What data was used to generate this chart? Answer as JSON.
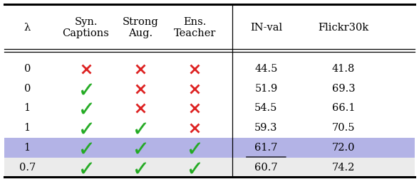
{
  "col_headers": [
    "λ",
    "Syn.\nCaptions",
    "Strong\nAug.",
    "Ens.\nTeacher",
    "IN-val",
    "Flickr30k"
  ],
  "rows": [
    {
      "lambda": "0",
      "syn": false,
      "strong": false,
      "ens": false,
      "inval": "44.5",
      "flickr": "41.8",
      "inval_underline": false,
      "flickr_underline": false,
      "highlight": false,
      "gray": false
    },
    {
      "lambda": "0",
      "syn": true,
      "strong": false,
      "ens": false,
      "inval": "51.9",
      "flickr": "69.3",
      "inval_underline": false,
      "flickr_underline": false,
      "highlight": false,
      "gray": false
    },
    {
      "lambda": "1",
      "syn": true,
      "strong": false,
      "ens": false,
      "inval": "54.5",
      "flickr": "66.1",
      "inval_underline": false,
      "flickr_underline": false,
      "highlight": false,
      "gray": false
    },
    {
      "lambda": "1",
      "syn": true,
      "strong": true,
      "ens": false,
      "inval": "59.3",
      "flickr": "70.5",
      "inval_underline": false,
      "flickr_underline": false,
      "highlight": false,
      "gray": false
    },
    {
      "lambda": "1",
      "syn": true,
      "strong": true,
      "ens": true,
      "inval": "61.7",
      "flickr": "72.0",
      "inval_underline": true,
      "flickr_underline": false,
      "highlight": true,
      "gray": false
    },
    {
      "lambda": "0.7",
      "syn": true,
      "strong": true,
      "ens": true,
      "inval": "60.7",
      "flickr": "74.2",
      "inval_underline": false,
      "flickr_underline": true,
      "highlight": false,
      "gray": true
    }
  ],
  "highlight_color": "#b3b3e6",
  "gray_color": "#ebebeb",
  "check_color": "#22aa22",
  "cross_color": "#dd2222",
  "font_size": 10.5,
  "header_font_size": 10.5
}
